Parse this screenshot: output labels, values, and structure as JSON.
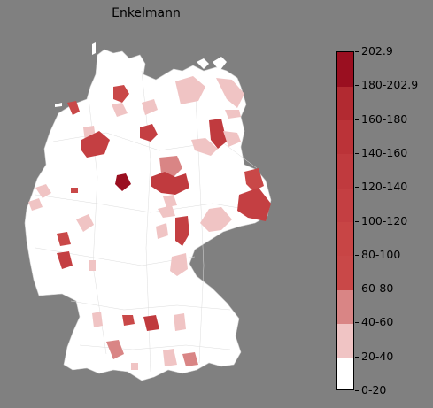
{
  "title": "Enkelmann",
  "legend": {
    "bins": [
      {
        "label": "0-20",
        "color": "#ffffff"
      },
      {
        "label": "20-40",
        "color": "#f0c4c4"
      },
      {
        "label": "40-60",
        "color": "#d98585"
      },
      {
        "label": "60-80",
        "color": "#c94848"
      },
      {
        "label": "80-100",
        "color": "#c84545"
      },
      {
        "label": "100-120",
        "color": "#c43f42"
      },
      {
        "label": "120-140",
        "color": "#c03a3e"
      },
      {
        "label": "140-160",
        "color": "#bb3338"
      },
      {
        "label": "160-180",
        "color": "#b22a31"
      },
      {
        "label": "180-202.9",
        "color": "#a81e2a"
      },
      {
        "label": "202.9",
        "color": "#9a0f20"
      }
    ]
  },
  "colors": {
    "background": "#808080",
    "land": "#ffffff",
    "border": "#c8c8c8"
  }
}
